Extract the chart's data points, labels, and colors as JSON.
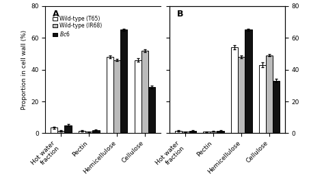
{
  "panel_A": {
    "categories": [
      "Hot water\nfraction",
      "Pectin",
      "Hemicellulose",
      "Cellulose"
    ],
    "T65": [
      3.5,
      1.5,
      48,
      46
    ],
    "IR68": [
      1.5,
      1.0,
      46,
      52
    ],
    "Bc6": [
      5.0,
      2.0,
      65,
      29
    ],
    "T65_err": [
      0.5,
      0.3,
      1.0,
      1.0
    ],
    "IR68_err": [
      0.3,
      0.2,
      0.8,
      0.8
    ],
    "Bc6_err": [
      0.7,
      0.3,
      0.8,
      1.0
    ],
    "label": "A"
  },
  "panel_B": {
    "categories": [
      "Hot water\nfraction",
      "Pectin",
      "Hemicellulose",
      "Cellulose"
    ],
    "T65": [
      1.5,
      1.0,
      54,
      43
    ],
    "IR68": [
      1.0,
      1.2,
      48,
      49
    ],
    "Bc6": [
      1.5,
      1.5,
      65,
      33
    ],
    "T65_err": [
      0.3,
      0.2,
      1.5,
      1.5
    ],
    "IR68_err": [
      0.2,
      0.3,
      1.0,
      0.8
    ],
    "Bc6_err": [
      0.3,
      0.3,
      0.8,
      1.0
    ],
    "label": "B"
  },
  "ylim": [
    0,
    80
  ],
  "yticks": [
    0,
    20,
    40,
    60,
    80
  ],
  "bar_width": 0.25,
  "colors": {
    "T65": "#ffffff",
    "IR68": "#bbbbbb",
    "Bc6": "#111111"
  },
  "edgecolor": "#000000",
  "ylabel": "Proportion in cell wall (%)",
  "figsize": [
    4.74,
    2.86
  ],
  "dpi": 100
}
